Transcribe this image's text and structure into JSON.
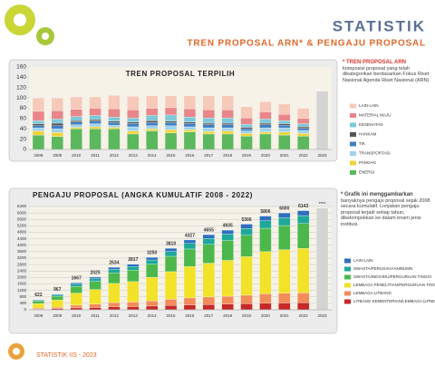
{
  "header": {
    "title": "STATISTIK",
    "subtitle": "TREN PROPOSAL ARN* & PENGAJU PROPOSAL"
  },
  "footer": "STATISTIK IIS - 2023",
  "notes": [
    {
      "title": "* TREN PROPOSAL ARN",
      "text": "komposisi proposal yang telah dikategorikan berdasarkan Fokus Riset Nasional Agenda Riset Nasional (ARN)"
    },
    {
      "title": "* Grafik ini menggambarkan",
      "text": "banyaknya pengaju proposal sejak 2008 secara kumulatif. Lonjakan pengaju proposal terjadi setiap tahun, dikelompokkan ke dalam enam jenis institusi."
    }
  ],
  "chart_data": [
    {
      "type": "bar",
      "stacked": true,
      "title": "TREN PROPOSAL TERPILIH",
      "categories": [
        "2008",
        "2009",
        "2010",
        "2011",
        "2012",
        "2013",
        "2014",
        "2015",
        "2016",
        "2017",
        "2018",
        "2019",
        "2020",
        "2021",
        "2022",
        "2023"
      ],
      "ylim": [
        0,
        160
      ],
      "yticks": [
        0,
        20,
        40,
        60,
        80,
        100,
        120,
        140,
        160
      ],
      "grid": false,
      "legend": "right",
      "series": [
        {
          "name": "ENERGI",
          "color": "#5cb85c",
          "values": [
            28,
            25,
            40,
            40,
            40,
            30,
            36,
            32,
            34,
            30,
            30,
            26,
            30,
            28,
            26,
            null
          ]
        },
        {
          "name": "PANGAN",
          "color": "#f0d43a",
          "values": [
            8,
            8,
            3,
            4,
            3,
            6,
            4,
            6,
            4,
            5,
            6,
            5,
            4,
            6,
            5,
            null
          ]
        },
        {
          "name": "TRANSPORTASI",
          "color": "#9fd3ee",
          "values": [
            6,
            7,
            5,
            6,
            4,
            8,
            6,
            8,
            6,
            7,
            6,
            5,
            8,
            8,
            6,
            null
          ]
        },
        {
          "name": "TIK",
          "color": "#3f7fc4",
          "values": [
            4,
            6,
            5,
            5,
            5,
            6,
            6,
            6,
            6,
            6,
            6,
            4,
            6,
            5,
            4,
            null
          ]
        },
        {
          "name": "HANKAM",
          "color": "#555555",
          "values": [
            4,
            5,
            3,
            3,
            3,
            3,
            4,
            3,
            3,
            3,
            3,
            3,
            3,
            3,
            3,
            null
          ]
        },
        {
          "name": "KESEHATAN",
          "color": "#7ec8d8",
          "values": [
            6,
            8,
            8,
            8,
            8,
            8,
            10,
            12,
            10,
            10,
            10,
            6,
            8,
            6,
            6,
            null
          ]
        },
        {
          "name": "MATERIAL MAJU",
          "color": "#e8868a",
          "values": [
            18,
            16,
            14,
            14,
            16,
            16,
            14,
            14,
            16,
            16,
            16,
            12,
            14,
            12,
            10,
            null
          ]
        },
        {
          "name": "LAIN-LAIN",
          "color": "#f6c9b8",
          "values": [
            26,
            25,
            24,
            22,
            26,
            26,
            24,
            23,
            25,
            27,
            27,
            22,
            20,
            20,
            20,
            null
          ]
        },
        {
          "color": "#d4d4d4",
          "values": [
            null,
            null,
            null,
            null,
            null,
            null,
            null,
            null,
            null,
            null,
            null,
            null,
            null,
            null,
            null,
            113
          ]
        }
      ]
    },
    {
      "type": "bar",
      "stacked": true,
      "title": "PENGAJU PROPOSAL (ANGKA KUMULATIF 2008 - 2022)",
      "categories": [
        "2008",
        "2009",
        "2010",
        "2011",
        "2012",
        "2013",
        "2014",
        "2015",
        "2016",
        "2017",
        "2018",
        "2019",
        "2020",
        "2021",
        "2022",
        "2023"
      ],
      "ylim": [
        0,
        6400
      ],
      "yticks": [
        0,
        400,
        800,
        1200,
        1600,
        2000,
        2400,
        2800,
        3200,
        3600,
        4000,
        4400,
        4800,
        5200,
        5600,
        6000,
        6400
      ],
      "grid": true,
      "legend": "right",
      "series": [
        {
          "name": "LITBANG KEMENTERIAN/LEMBAGA (LPNK)",
          "color": "#c62828",
          "values": [
            44,
            68,
            117,
            142,
            184,
            197,
            228,
            267,
            303,
            326,
            345,
            371,
            406,
            420,
            430,
            null
          ]
        },
        {
          "name": "LEMBAGA LITBANG",
          "color": "#f28c5a",
          "values": [
            62,
            97,
            167,
            203,
            263,
            282,
            325,
            381,
            433,
            466,
            494,
            531,
            581,
            600,
            614,
            null
          ]
        },
        {
          "name": "LEMBAGA PENELITIAN/PERGURUAN TINGGI",
          "color": "#f2e229",
          "values": [
            279,
            435,
            750,
            911,
            1185,
            1268,
            1461,
            1713,
            1947,
            2094,
            2220,
            2388,
            2613,
            2700,
            2765,
            null
          ]
        },
        {
          "name": "SWASTA/INDIVIDU/PERGURUAN TINGGI",
          "color": "#4cb84c",
          "values": [
            156,
            242,
            417,
            506,
            659,
            704,
            813,
            953,
            1082,
            1164,
            1234,
            1327,
            1452,
            1500,
            1536,
            null
          ]
        },
        {
          "name": "SWASTA/PERUSAHAAN/BUMN",
          "color": "#1fa89a",
          "values": [
            50,
            77,
            133,
            162,
            211,
            225,
            260,
            305,
            346,
            372,
            395,
            424,
            464,
            480,
            491,
            null
          ]
        },
        {
          "name": "LAIN-LAIN",
          "color": "#2e6fc0",
          "values": [
            31,
            48,
            83,
            101,
            132,
            141,
            163,
            191,
            216,
            233,
            247,
            265,
            290,
            300,
            307,
            null
          ]
        },
        {
          "color": "#d4d4d4",
          "values": [
            null,
            null,
            null,
            null,
            null,
            null,
            null,
            null,
            null,
            null,
            null,
            null,
            null,
            null,
            null,
            6300
          ]
        }
      ],
      "total_labels": [
        622,
        967,
        1667,
        2025,
        2634,
        2817,
        3250,
        3810,
        4327,
        4655,
        4935,
        5306,
        5806,
        6000,
        6143,
        null
      ],
      "extra_label": "****"
    }
  ]
}
